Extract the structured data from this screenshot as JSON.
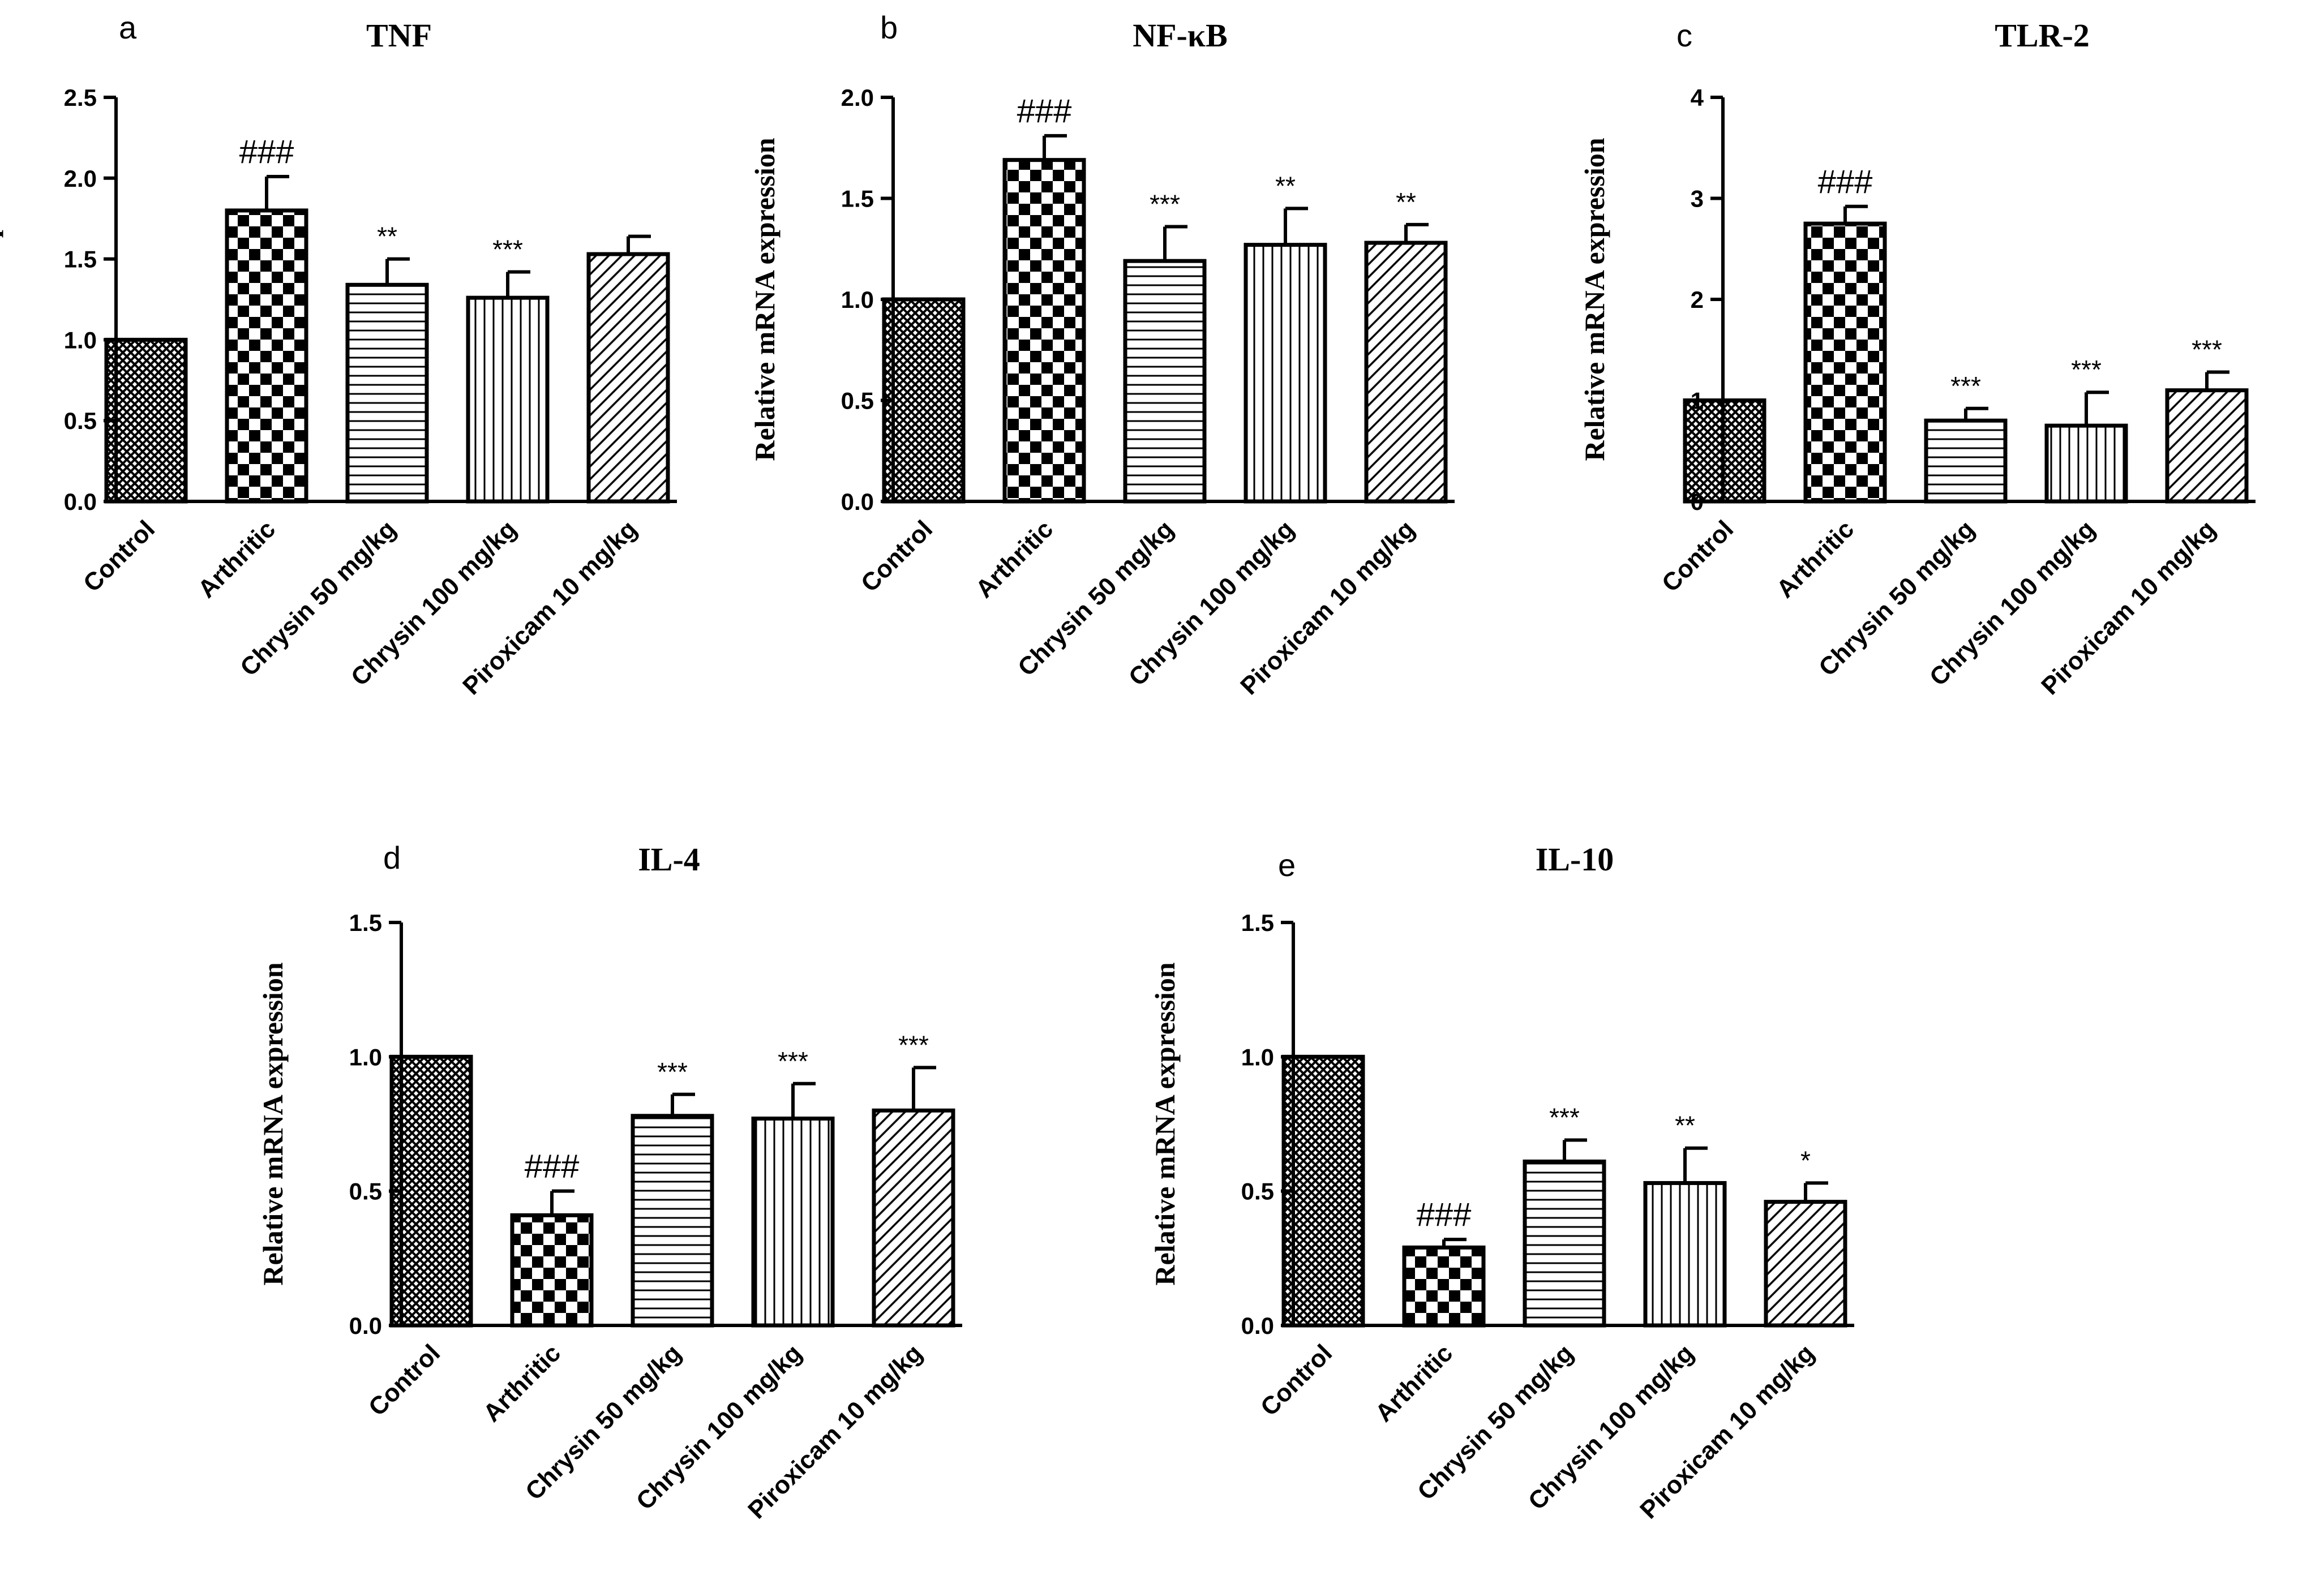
{
  "chart_data": [
    {
      "type": "bar",
      "panel": "a",
      "title": "TNF",
      "ylabel": "Relative mRNA expression",
      "categories": [
        "Control",
        "Arthritic",
        "Chrysin 50 mg/kg",
        "Chrysin 100 mg/kg",
        "Piroxicam 10 mg/kg"
      ],
      "values": [
        1.0,
        1.8,
        1.34,
        1.26,
        1.53
      ],
      "errors": [
        0.0,
        0.21,
        0.16,
        0.16,
        0.11
      ],
      "annotations": [
        "",
        "###",
        "**",
        "***",
        ""
      ],
      "ylim": [
        0,
        2.5
      ],
      "yticks": [
        0.0,
        0.5,
        1.0,
        1.5,
        2.0,
        2.5
      ],
      "ytick_labels": [
        "0.0",
        "0.5",
        "1.0",
        "1.5",
        "2.0",
        "2.5"
      ]
    },
    {
      "type": "bar",
      "panel": "b",
      "title": "NF-κB",
      "ylabel": "Relative mRNA expression",
      "categories": [
        "Control",
        "Arthritic",
        "Chrysin 50 mg/kg",
        "Chrysin 100 mg/kg",
        "Piroxicam 10 mg/kg"
      ],
      "values": [
        1.0,
        1.69,
        1.19,
        1.27,
        1.28
      ],
      "errors": [
        0.0,
        0.12,
        0.17,
        0.18,
        0.09
      ],
      "annotations": [
        "",
        "###",
        "***",
        "**",
        "**"
      ],
      "ylim": [
        0,
        2.0
      ],
      "yticks": [
        0.0,
        0.5,
        1.0,
        1.5,
        2.0
      ],
      "ytick_labels": [
        "0.0",
        "0.5",
        "1.0",
        "1.5",
        "2.0"
      ]
    },
    {
      "type": "bar",
      "panel": "c",
      "title": "TLR-2",
      "ylabel": "Relative mRNA expression",
      "categories": [
        "Control",
        "Arthritic",
        "Chrysin 50 mg/kg",
        "Chrysin 100 mg/kg",
        "Piroxicam 10 mg/kg"
      ],
      "values": [
        1.0,
        2.75,
        0.8,
        0.75,
        1.1
      ],
      "errors": [
        0.0,
        0.17,
        0.12,
        0.33,
        0.18
      ],
      "annotations": [
        "",
        "###",
        "***",
        "***",
        "***"
      ],
      "ylim": [
        0,
        4
      ],
      "yticks": [
        0,
        1,
        2,
        3,
        4
      ],
      "ytick_labels": [
        "0",
        "1",
        "2",
        "3",
        "4"
      ]
    },
    {
      "type": "bar",
      "panel": "d",
      "title": "IL-4",
      "ylabel": "Relative mRNA expression",
      "categories": [
        "Control",
        "Arthritic",
        "Chrysin 50 mg/kg",
        "Chrysin 100 mg/kg",
        "Piroxicam 10 mg/kg"
      ],
      "values": [
        1.0,
        0.41,
        0.78,
        0.77,
        0.8
      ],
      "errors": [
        0.0,
        0.09,
        0.08,
        0.13,
        0.16
      ],
      "annotations": [
        "",
        "###",
        "***",
        "***",
        "***"
      ],
      "ylim": [
        0,
        1.5
      ],
      "yticks": [
        0.0,
        0.5,
        1.0,
        1.5
      ],
      "ytick_labels": [
        "0.0",
        "0.5",
        "1.0",
        "1.5"
      ]
    },
    {
      "type": "bar",
      "panel": "e",
      "title": "IL-10",
      "ylabel": "Relative mRNA expression",
      "categories": [
        "Control",
        "Arthritic",
        "Chrysin 50 mg/kg",
        "Chrysin 100 mg/kg",
        "Piroxicam 10 mg/kg"
      ],
      "values": [
        1.0,
        0.29,
        0.61,
        0.53,
        0.46
      ],
      "errors": [
        0.0,
        0.03,
        0.08,
        0.13,
        0.07
      ],
      "annotations": [
        "",
        "###",
        "***",
        "**",
        "*"
      ],
      "ylim": [
        0,
        1.5
      ],
      "yticks": [
        0.0,
        0.5,
        1.0,
        1.5
      ],
      "ytick_labels": [
        "0.0",
        "0.5",
        "1.0",
        "1.5"
      ]
    }
  ],
  "legend_patterns": {
    "Control": "fine-crosshatch",
    "Arthritic": "checkerboard",
    "Chrysin 50 mg/kg": "horizontal-lines",
    "Chrysin 100 mg/kg": "vertical-lines",
    "Piroxicam 10 mg/kg": "diagonal-lines"
  },
  "colors": {
    "ink": "#000000",
    "background": "#ffffff"
  }
}
